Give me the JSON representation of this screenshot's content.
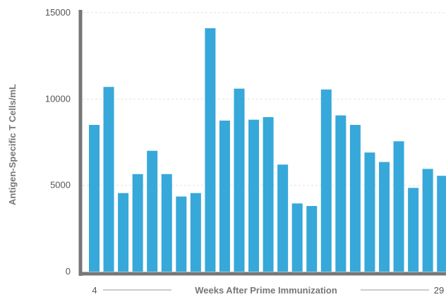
{
  "chart_data": {
    "type": "bar",
    "ylabel": "Antigen-Specific T Cells/mL",
    "xlabel": "Weeks After Prime Immunization",
    "x_start_label": "4",
    "x_end_label": "29",
    "ylim": [
      0,
      15000
    ],
    "yticks": [
      0,
      5000,
      10000,
      15000
    ],
    "ytick_labels": [
      "0",
      "5000",
      "10000",
      "15000"
    ],
    "grid": "horizontal dashed",
    "bar_color": "#37a8da",
    "axis_color": "#777777",
    "values": [
      8500,
      10700,
      4550,
      5650,
      7000,
      5650,
      4350,
      4550,
      14100,
      8750,
      10600,
      8800,
      8950,
      6200,
      3950,
      3800,
      10550,
      9050,
      8500,
      6900,
      6350,
      7550,
      4850,
      5950,
      5550
    ]
  }
}
